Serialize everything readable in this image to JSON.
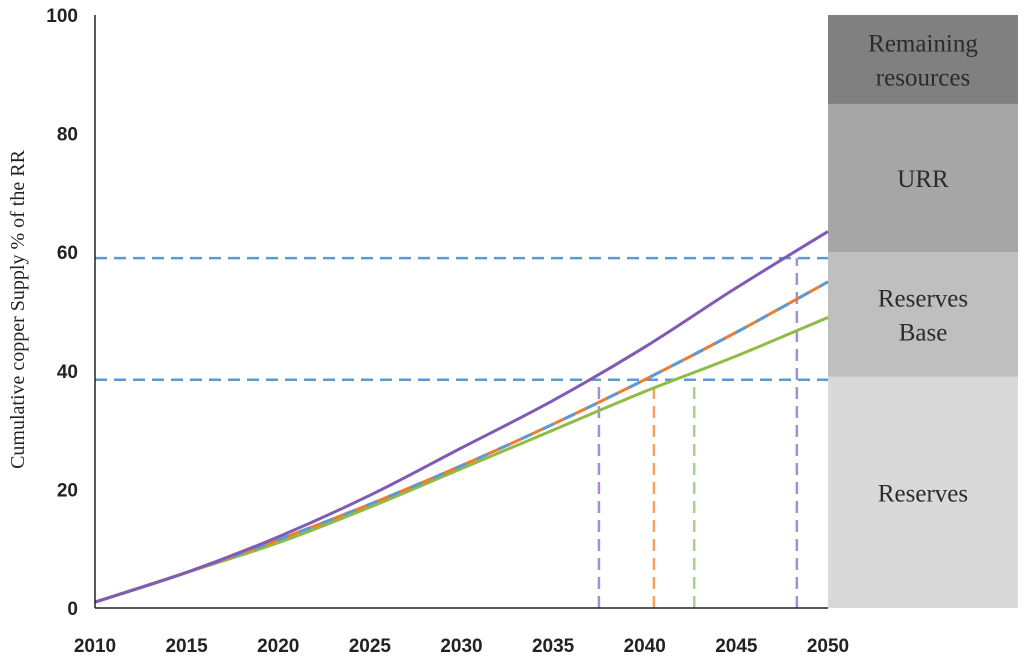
{
  "chart_data": {
    "type": "line",
    "title": "",
    "xlabel": "",
    "ylabel": "Cumulative copper Supply % of the RR",
    "xlim": [
      2010,
      2050
    ],
    "ylim": [
      0,
      100
    ],
    "x_ticks": [
      "2010",
      "2015",
      "2020",
      "2025",
      "2030",
      "2035",
      "2040",
      "2045",
      "2050"
    ],
    "y_ticks": [
      "0",
      "20",
      "40",
      "60",
      "80",
      "100"
    ],
    "grid": false,
    "legend": "none",
    "series": [
      {
        "color": "#7f5bb3",
        "x": [
          2010,
          2015,
          2020,
          2025,
          2030,
          2035,
          2040,
          2045,
          2050
        ],
        "y": [
          1,
          6,
          12,
          19,
          27,
          35,
          44,
          54,
          63.5
        ]
      },
      {
        "color": "#ed7d31",
        "dash_color": "#5b9bd5",
        "x": [
          2010,
          2015,
          2020,
          2025,
          2030,
          2035,
          2040,
          2045,
          2050
        ],
        "y": [
          1,
          6,
          11.5,
          17.5,
          24,
          31,
          38.5,
          46.5,
          55
        ]
      },
      {
        "color": "#8fbc45",
        "x": [
          2010,
          2015,
          2020,
          2025,
          2030,
          2035,
          2040,
          2045,
          2050
        ],
        "y": [
          1,
          6,
          11,
          17,
          23.5,
          30,
          36.5,
          42.5,
          49
        ]
      }
    ],
    "reference_lines": {
      "horizontal": [
        {
          "y": 38.5,
          "color": "#5b9bd5"
        },
        {
          "y": 59,
          "color": "#5b9bd5"
        }
      ],
      "vertical": [
        {
          "x": 2037.5,
          "color": "#a58fd4"
        },
        {
          "x": 2040.5,
          "color": "#f4a460"
        },
        {
          "x": 2042.7,
          "color": "#a9d18e"
        },
        {
          "x": 2048.3,
          "color": "#a58fd4"
        }
      ]
    },
    "bands": [
      {
        "label": [
          "Reserves"
        ],
        "from": 0,
        "to": 39,
        "color": "#d9d9d9"
      },
      {
        "label": [
          "Reserves",
          "Base"
        ],
        "from": 39,
        "to": 60,
        "color": "#bfbfbf"
      },
      {
        "label": [
          "URR"
        ],
        "from": 60,
        "to": 85,
        "color": "#a6a6a6"
      },
      {
        "label": [
          "Remaining",
          "resources"
        ],
        "from": 85,
        "to": 100,
        "color": "#808080"
      }
    ]
  }
}
